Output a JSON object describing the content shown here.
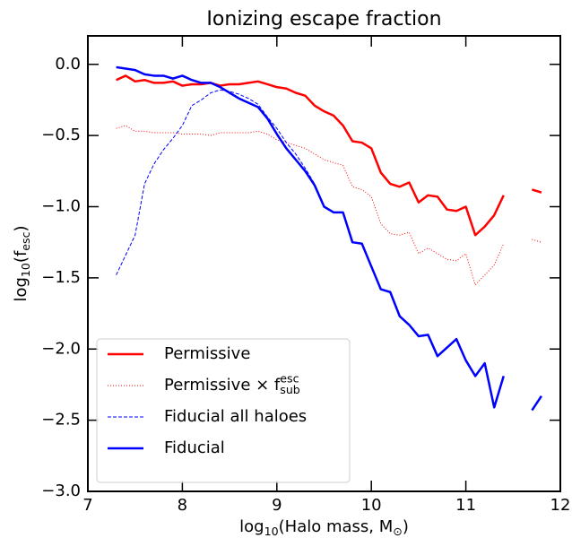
{
  "chart_data": {
    "type": "line",
    "title": "Ionizing escape fraction",
    "xlabel": [
      {
        "text": "log"
      },
      {
        "text": "10",
        "shift": "sub"
      },
      {
        "text": "(Halo mass, M"
      },
      {
        "text": "⊙",
        "shift": "sub"
      },
      {
        "text": ")"
      }
    ],
    "ylabel": [
      {
        "text": "log"
      },
      {
        "text": "10",
        "shift": "sub"
      },
      {
        "text": "(f"
      },
      {
        "text": "esc",
        "shift": "sub"
      },
      {
        "text": ")"
      }
    ],
    "xlim": [
      7,
      12
    ],
    "ylim": [
      -3.0,
      0.2
    ],
    "xticks": [
      7,
      8,
      9,
      10,
      11,
      12
    ],
    "yticks": [
      {
        "value": 0,
        "label": "0.0"
      },
      {
        "value": -0.5,
        "label": "−0.5"
      },
      {
        "value": -1.0,
        "label": "−1.0"
      },
      {
        "value": -1.5,
        "label": "−1.5"
      },
      {
        "value": -2.0,
        "label": "−2.0"
      },
      {
        "value": -2.5,
        "label": "−2.5"
      },
      {
        "value": -3.0,
        "label": "−3.0"
      }
    ],
    "legend": "lower left",
    "x": [
      7.3,
      7.4,
      7.5,
      7.6,
      7.7,
      7.8,
      7.9,
      8.0,
      8.1,
      8.2,
      8.3,
      8.4,
      8.5,
      8.6,
      8.7,
      8.8,
      8.9,
      9.0,
      9.1,
      9.2,
      9.3,
      9.4,
      9.5,
      9.6,
      9.7,
      9.8,
      9.9,
      10.0,
      10.1,
      10.2,
      10.3,
      10.4,
      10.5,
      10.6,
      10.7,
      10.8,
      10.9,
      11.0,
      11.1,
      11.2,
      11.3,
      11.4,
      11.5,
      11.6,
      11.7,
      11.8
    ],
    "series": [
      {
        "name": [
          {
            "text": "Permissive"
          }
        ],
        "color": "#ff0000",
        "linestyle": "solid",
        "linewidth": 2.5,
        "values": [
          -0.11,
          -0.08,
          -0.12,
          -0.11,
          -0.13,
          -0.13,
          -0.12,
          -0.15,
          -0.14,
          -0.14,
          -0.13,
          -0.15,
          -0.14,
          -0.14,
          -0.13,
          -0.12,
          -0.14,
          -0.16,
          -0.17,
          -0.2,
          -0.22,
          -0.29,
          -0.33,
          -0.36,
          -0.43,
          -0.54,
          -0.55,
          -0.59,
          -0.76,
          -0.84,
          -0.86,
          -0.83,
          -0.97,
          -0.92,
          -0.93,
          -1.02,
          -1.03,
          -1.0,
          -1.2,
          -1.14,
          -1.06,
          -0.92,
          null,
          null,
          -0.88,
          -0.9
        ]
      },
      {
        "name": [
          {
            "text": "Permissive × f"
          },
          {
            "text": "esc",
            "shift": "sup"
          },
          {
            "text": "sub",
            "shift": "sub"
          }
        ],
        "color": "#ff0000",
        "linestyle": "dotted",
        "linewidth": 1,
        "values": [
          -0.45,
          -0.43,
          -0.47,
          -0.47,
          -0.48,
          -0.48,
          -0.48,
          -0.49,
          -0.49,
          -0.49,
          -0.5,
          -0.48,
          -0.48,
          -0.48,
          -0.48,
          -0.47,
          -0.49,
          -0.53,
          -0.55,
          -0.57,
          -0.59,
          -0.63,
          -0.67,
          -0.69,
          -0.71,
          -0.86,
          -0.88,
          -0.93,
          -1.12,
          -1.19,
          -1.2,
          -1.18,
          -1.33,
          -1.29,
          -1.33,
          -1.37,
          -1.38,
          -1.33,
          -1.55,
          -1.48,
          -1.41,
          -1.26,
          null,
          null,
          -1.23,
          -1.25
        ]
      },
      {
        "name": [
          {
            "text": "Fiducial all haloes"
          }
        ],
        "color": "#0000ff",
        "linestyle": "dashed",
        "linewidth": 1,
        "values": [
          -1.48,
          -1.34,
          -1.2,
          -0.84,
          -0.7,
          -0.6,
          -0.52,
          -0.43,
          -0.29,
          -0.25,
          -0.2,
          -0.18,
          -0.19,
          -0.21,
          -0.24,
          -0.28,
          -0.37,
          -0.45,
          -0.55,
          -0.63,
          -0.73,
          -0.84,
          null,
          null,
          null,
          null,
          null,
          null,
          null,
          null,
          null,
          null,
          null,
          null,
          null,
          null,
          null,
          null,
          null,
          null,
          null,
          null,
          null,
          null,
          null,
          null
        ]
      },
      {
        "name": [
          {
            "text": "Fiducial"
          }
        ],
        "color": "#0000ff",
        "linestyle": "solid",
        "linewidth": 2.5,
        "values": [
          -0.02,
          -0.03,
          -0.04,
          -0.07,
          -0.08,
          -0.08,
          -0.1,
          -0.08,
          -0.11,
          -0.13,
          -0.13,
          -0.16,
          -0.2,
          -0.24,
          -0.27,
          -0.3,
          -0.38,
          -0.49,
          -0.59,
          -0.67,
          -0.75,
          -0.85,
          -1.0,
          -1.04,
          -1.04,
          -1.25,
          -1.26,
          -1.42,
          -1.58,
          -1.6,
          -1.77,
          -1.83,
          -1.91,
          -1.9,
          -2.05,
          -1.99,
          -1.93,
          -2.08,
          -2.19,
          -2.1,
          -2.41,
          -2.19,
          null,
          null,
          -2.43,
          -2.33
        ]
      }
    ]
  }
}
